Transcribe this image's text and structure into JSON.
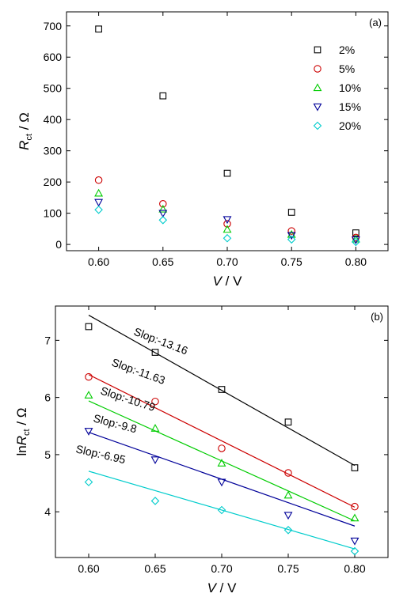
{
  "chart_data": [
    {
      "type": "scatter",
      "panel_label": "(a)",
      "xlabel": {
        "main": "V",
        "suffix": " / V"
      },
      "ylabel": {
        "main": "R",
        "sub": "ct",
        "suffix": " / Ω"
      },
      "xlim": [
        0.575,
        0.825
      ],
      "ylim": [
        -20,
        745
      ],
      "x_ticks": [
        "0.60",
        "0.65",
        "0.70",
        "0.75",
        "0.80"
      ],
      "y_ticks": [
        "0",
        "100",
        "200",
        "300",
        "400",
        "500",
        "600",
        "700"
      ],
      "legend_position": "upper-right",
      "x": [
        0.6,
        0.65,
        0.7,
        0.75,
        0.8
      ],
      "series": [
        {
          "name": "2%",
          "marker": "square",
          "color": "#000000",
          "values": [
            690,
            476,
            228,
            103,
            37
          ]
        },
        {
          "name": "5%",
          "marker": "circle",
          "color": "#cc0000",
          "values": [
            206,
            130,
            66,
            43,
            22
          ]
        },
        {
          "name": "10%",
          "marker": "triangle",
          "color": "#00cc00",
          "values": [
            164,
            113,
            48,
            32,
            17
          ]
        },
        {
          "name": "15%",
          "marker": "tri-down",
          "color": "#000099",
          "values": [
            135,
            100,
            80,
            29,
            15
          ]
        },
        {
          "name": "20%",
          "marker": "diamond",
          "color": "#00cccc",
          "values": [
            111,
            78,
            20,
            16,
            8
          ]
        }
      ]
    },
    {
      "type": "scatter",
      "panel_label": "(b)",
      "xlabel": {
        "main": "V",
        "suffix": " / V"
      },
      "ylabel": {
        "prefix": "ln",
        "main": "R",
        "sub": "ct",
        "suffix": "  / Ω"
      },
      "xlim": [
        0.575,
        0.825
      ],
      "ylim": [
        3.2,
        7.6
      ],
      "x_ticks": [
        "0.60",
        "0.65",
        "0.70",
        "0.75",
        "0.80"
      ],
      "y_ticks": [
        "4",
        "5",
        "6",
        "7"
      ],
      "x": [
        0.6,
        0.65,
        0.7,
        0.75,
        0.8
      ],
      "series": [
        {
          "marker": "square",
          "color": "#000000",
          "values": [
            7.24,
            6.79,
            6.14,
            5.57,
            4.77
          ],
          "fit": [
            7.44,
            4.81
          ],
          "slope_label": "Slop:-13.16"
        },
        {
          "marker": "circle",
          "color": "#cc0000",
          "values": [
            6.36,
            5.93,
            5.11,
            4.68,
            4.09
          ],
          "fit": [
            6.4,
            4.08
          ],
          "slope_label": "Slop:-11.63"
        },
        {
          "marker": "triangle",
          "color": "#00cc00",
          "values": [
            6.04,
            5.46,
            4.85,
            4.29,
            3.89
          ],
          "fit": [
            5.94,
            3.84
          ],
          "slope_label": "Slop:-10.79"
        },
        {
          "marker": "tri-down",
          "color": "#000099",
          "values": [
            5.41,
            4.91,
            4.52,
            3.94,
            3.49
          ],
          "fit": [
            5.39,
            3.75
          ],
          "slope_label": "Slop:-9.8"
        },
        {
          "marker": "diamond",
          "color": "#00cccc",
          "values": [
            4.52,
            4.19,
            4.03,
            3.68,
            3.31
          ],
          "fit": [
            4.71,
            3.35
          ],
          "slope_label": "Slop:-6.95"
        }
      ]
    }
  ]
}
